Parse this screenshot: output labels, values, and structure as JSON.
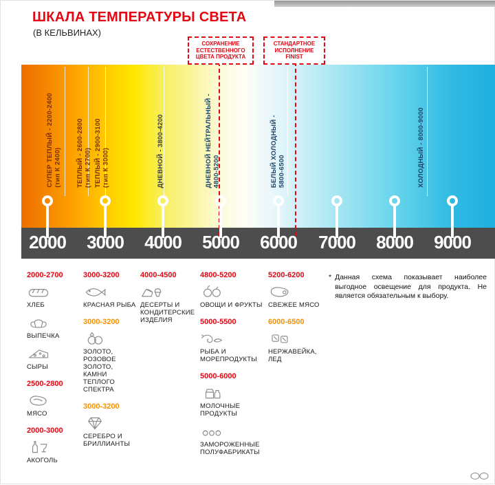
{
  "header": {
    "title": "ШКАЛА ТЕМПЕРАТУРЫ СВЕТА",
    "subtitle": "(В КЕЛЬВИНАХ)"
  },
  "callouts": [
    {
      "text": "СОХРАНЕНИЕ ЕСТЕСТВЕННОГО ЦВЕТА ПРОДУКТА"
    },
    {
      "text": "СТАНДАРТНОЕ ИСПОЛНЕНИЕ FINIST"
    }
  ],
  "gradient_labels": [
    {
      "line1": "СУПЕР ТЕПЛЫЙ - 2200-2400",
      "line2": "(тип К 2400)"
    },
    {
      "line1": "ТЕПЛЫЙ - 2600-2800",
      "line2": "(тип К 2700)"
    },
    {
      "line1": "ТЕПЛЫЙ - 2900-3100",
      "line2": "(тип К 3000)"
    },
    {
      "line1": "ДНЕВНОЙ - 3800-4200"
    },
    {
      "line1": "ДНЕВНОЙ НЕЙТРАЛЬНЫЙ -",
      "line2": "4800-5200"
    },
    {
      "line1": "БЕЛЫЙ ХОЛОДНЫЙ -",
      "line2": "5800-6500"
    },
    {
      "line1": "ХОЛОДНЫЙ - 8000-9000"
    }
  ],
  "scale": {
    "numbers": [
      "2000",
      "3000",
      "4000",
      "5000",
      "6000",
      "7000",
      "8000",
      "9000"
    ]
  },
  "products": {
    "columns": [
      {
        "groups": [
          {
            "range": "2000-2700",
            "color": "red",
            "items": [
              {
                "icon": "bread-icon",
                "label": "ХЛЕБ"
              },
              {
                "icon": "pastry-icon",
                "label": "ВЫПЕЧКА"
              },
              {
                "icon": "cheese-icon",
                "label": "СЫРЫ"
              }
            ]
          },
          {
            "range": "2500-2800",
            "color": "red",
            "items": [
              {
                "icon": "meat-icon",
                "label": "МЯСО"
              }
            ]
          },
          {
            "range": "2000-3000",
            "color": "red",
            "items": [
              {
                "icon": "alcohol-icon",
                "label": "АКОГОЛЬ"
              }
            ]
          }
        ]
      },
      {
        "groups": [
          {
            "range": "3000-3200",
            "color": "red",
            "items": [
              {
                "icon": "fish-icon",
                "label": "КРАСНАЯ РЫБА"
              }
            ]
          },
          {
            "range": "3000-3200",
            "color": "orange",
            "items": [
              {
                "icon": "gold-rings-icon",
                "label": "ЗОЛОТО, РОЗОВОЕ ЗОЛОТО, КАМНИ ТЕПЛОГО СПЕКТРА"
              }
            ]
          },
          {
            "range": "3000-3200",
            "color": "orange",
            "items": [
              {
                "icon": "diamond-icon",
                "label": "СЕРЕБРО И БРИЛЛИАНТЫ"
              }
            ]
          }
        ]
      },
      {
        "groups": [
          {
            "range": "4000-4500",
            "color": "red",
            "items": [
              {
                "icon": "dessert-icon",
                "label": "ДЕСЕРТЫ И КОНДИТЕРСКИЕ ИЗДЕЛИЯ"
              }
            ]
          }
        ]
      },
      {
        "groups": [
          {
            "range": "4800-5200",
            "color": "red",
            "items": [
              {
                "icon": "fruits-icon",
                "label": "ОВОЩИ И ФРУКТЫ"
              }
            ]
          },
          {
            "range": "5000-5500",
            "color": "red",
            "items": [
              {
                "icon": "seafood-icon",
                "label": "РЫБА И МОРЕПРОДУКТЫ"
              }
            ]
          },
          {
            "range": "5000-6000",
            "color": "red",
            "items": [
              {
                "icon": "dairy-icon",
                "label": "МОЛОЧНЫЕ ПРОДУКТЫ"
              },
              {
                "icon": "frozen-icon",
                "label": "ЗАМОРОЖЕННЫЕ ПОЛУФАБРИКАТЫ"
              }
            ]
          }
        ]
      },
      {
        "groups": [
          {
            "range": "5200-6200",
            "color": "red",
            "items": [
              {
                "icon": "fresh-meat-icon",
                "label": "СВЕЖЕЕ МЯСО"
              }
            ]
          },
          {
            "range": "6000-6500",
            "color": "orange",
            "items": [
              {
                "icon": "ice-icon",
                "label": "НЕРЖАВЕЙКА, ЛЕД"
              }
            ]
          }
        ]
      }
    ]
  },
  "note": {
    "marker": "*",
    "text": "Данная схема показывает наиболее выгодное освещение для продукта. Не является обязательным к выбору."
  },
  "colors": {
    "accent_red": "#e30613",
    "accent_orange": "#f59100",
    "scale_bar_bg": "#4d4d4d",
    "warm_label": "#7b2e00",
    "day_label": "#3c3c3c",
    "cool_label": "#1c4466",
    "gradient_start": "#ed6f00",
    "gradient_end": "#1fb0de"
  }
}
